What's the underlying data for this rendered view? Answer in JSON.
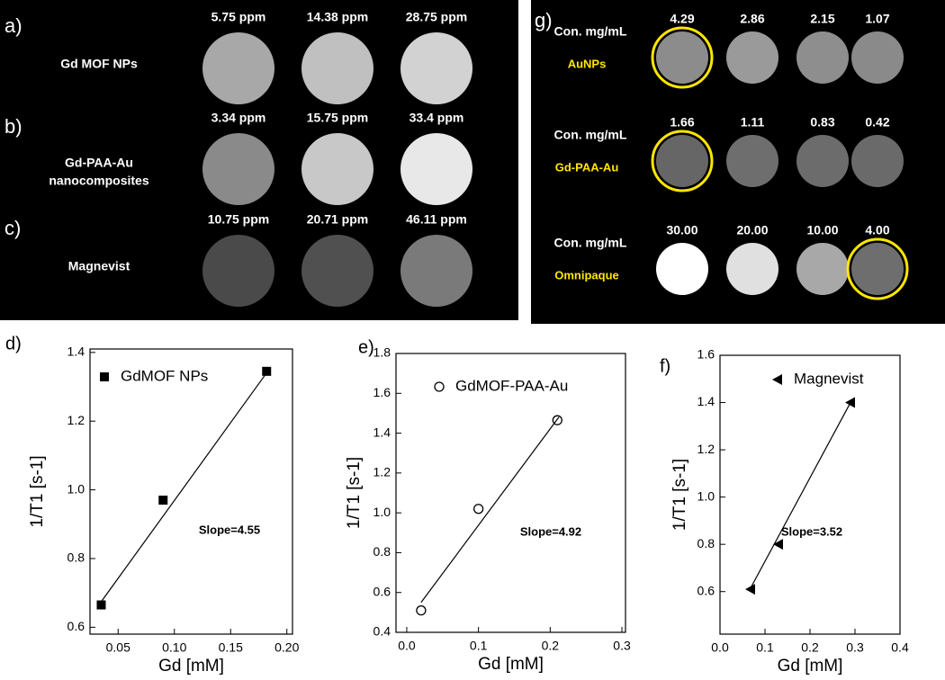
{
  "mri_panel": {
    "rows": [
      {
        "label": "a)",
        "name": [
          "Gd MOF NPs"
        ],
        "concentrations": [
          "5.75 ppm",
          "14.38 ppm",
          "28.75 ppm"
        ]
      },
      {
        "label": "b)",
        "name": [
          "Gd-PAA-Au",
          "nanocomposites"
        ],
        "concentrations": [
          "3.34 ppm",
          "15.75 ppm",
          "33.4 ppm"
        ]
      },
      {
        "label": "c)",
        "name": [
          "Magnevist"
        ],
        "concentrations": [
          "10.75 ppm",
          "20.71 ppm",
          "46.11 ppm"
        ]
      }
    ]
  },
  "phantom_panel": {
    "label": "g)",
    "rows": [
      {
        "heading": "Con. mg/mL",
        "agent": "AuNPs",
        "values": [
          "4.29",
          "2.86",
          "2.15",
          "1.07"
        ]
      },
      {
        "heading": "Con. mg/mL",
        "agent": "Gd-PAA-Au",
        "values": [
          "1.66",
          "1.11",
          "0.83",
          "0.42"
        ]
      },
      {
        "heading": "Con. mg/mL",
        "agent": "Omnipaque",
        "values": [
          "30.00",
          "20.00",
          "10.00",
          "4.00"
        ]
      }
    ]
  },
  "chart_data": [
    {
      "type": "scatter",
      "panel": "d)",
      "xlabel": "Gd [mM]",
      "ylabel": "1/T1 [s-1]",
      "annotation": "Slope=4.55",
      "x": [
        0.035,
        0.09,
        0.182
      ],
      "series": [
        {
          "name": "GdMOF NPs",
          "color": "#000000",
          "marker": "square",
          "values": [
            0.665,
            0.97,
            1.345
          ]
        }
      ],
      "fit": {
        "x": [
          0.034,
          0.183
        ],
        "y": [
          0.67,
          1.345
        ]
      },
      "xlim": [
        0.025,
        0.205
      ],
      "ylim": [
        0.58,
        1.41
      ],
      "xticks": [
        0.05,
        {
          "value": 0.1,
          "label": "0.10"
        },
        0.15,
        {
          "value": 0.2,
          "label": "0.20"
        }
      ],
      "yticks": [
        0.6,
        0.8,
        {
          "value": 1.0,
          "label": "1.0"
        },
        1.2,
        1.4
      ],
      "legend": "upper left",
      "grid": false
    },
    {
      "type": "scatter",
      "panel": "e)",
      "xlabel": "Gd [mM]",
      "ylabel": "1/T1 [s-1]",
      "annotation": "Slope=4.92",
      "x": [
        0.02,
        0.1,
        0.21
      ],
      "series": [
        {
          "name": "GdMOF-PAA-Au",
          "color": "#000000",
          "marker": "circle",
          "values": [
            0.51,
            1.02,
            1.465
          ]
        }
      ],
      "fit": {
        "x": [
          0.02,
          0.212
        ],
        "y": [
          0.55,
          1.48
        ]
      },
      "xlim": [
        -0.015,
        0.305
      ],
      "ylim": [
        0.4,
        1.8
      ],
      "xticks": [
        {
          "value": 0,
          "label": "0.0"
        },
        0.1,
        0.2,
        0.3
      ],
      "yticks": [
        0.4,
        0.6,
        0.8,
        {
          "value": 1.0,
          "label": "1.0"
        },
        1.2,
        1.4,
        1.6,
        1.8
      ],
      "legend": "upper left",
      "grid": false
    },
    {
      "type": "scatter",
      "panel": "f)",
      "xlabel": "Gd [mM]",
      "ylabel": "1/T1 [s-1]",
      "annotation": "Slope=3.52",
      "x": [
        0.068,
        0.13,
        0.29
      ],
      "series": [
        {
          "name": "Magnevist",
          "color": "#000000",
          "marker": "triangle-left",
          "values": [
            0.61,
            0.8,
            1.4
          ]
        }
      ],
      "fit": {
        "x": [
          0.068,
          0.29
        ],
        "y": [
          0.615,
          1.4
        ]
      },
      "xlim": [
        0,
        0.4
      ],
      "ylim": [
        0.42,
        1.6
      ],
      "xticks": [
        {
          "value": 0,
          "label": "0.0"
        },
        0.1,
        0.2,
        0.3,
        0.4
      ],
      "yticks": [
        0.6,
        0.8,
        {
          "value": 1.0,
          "label": "1.0"
        },
        1.2,
        1.4,
        1.6
      ],
      "legend": "upper left",
      "grid": false
    }
  ]
}
